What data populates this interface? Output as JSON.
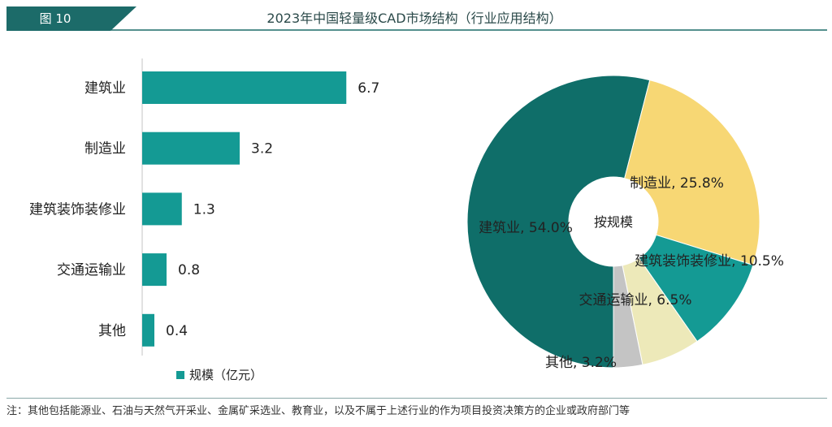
{
  "figure": {
    "tag": "图 10",
    "title": "2023年中国轻量级CAD市场结构（行业应用结构）",
    "note": "注：其他包括能源业、石油与天然气开采业、金属矿采选业、教育业，以及不属于上述行业的作为项目投资决策方的企业或政府部门等"
  },
  "colors": {
    "header": "#1c6b69",
    "bar": "#149a94",
    "pie": [
      "#0f6e69",
      "#f7d774",
      "#149a94",
      "#ede9b9",
      "#c4c4c4"
    ]
  },
  "chart_data": [
    {
      "type": "bar",
      "orientation": "horizontal",
      "categories": [
        "建筑业",
        "制造业",
        "建筑装饰装修业",
        "交通运输业",
        "其他"
      ],
      "series": [
        {
          "name": "规模（亿元）",
          "values": [
            6.7,
            3.2,
            1.3,
            0.8,
            0.4
          ]
        }
      ],
      "legend": "bottom",
      "grid": false
    },
    {
      "type": "pie",
      "donut": true,
      "center_label": "按规模",
      "slices": [
        {
          "label": "建筑业",
          "value": 54.0,
          "text": "建筑业, 54.0%"
        },
        {
          "label": "制造业",
          "value": 25.8,
          "text": "制造业, 25.8%"
        },
        {
          "label": "建筑装饰装修业",
          "value": 10.5,
          "text": "建筑装饰装修业, 10.5%"
        },
        {
          "label": "交通运输业",
          "value": 6.5,
          "text": "交通运输业, 6.5%"
        },
        {
          "label": "其他",
          "value": 3.2,
          "text": "其他, 3.2%"
        }
      ]
    }
  ]
}
